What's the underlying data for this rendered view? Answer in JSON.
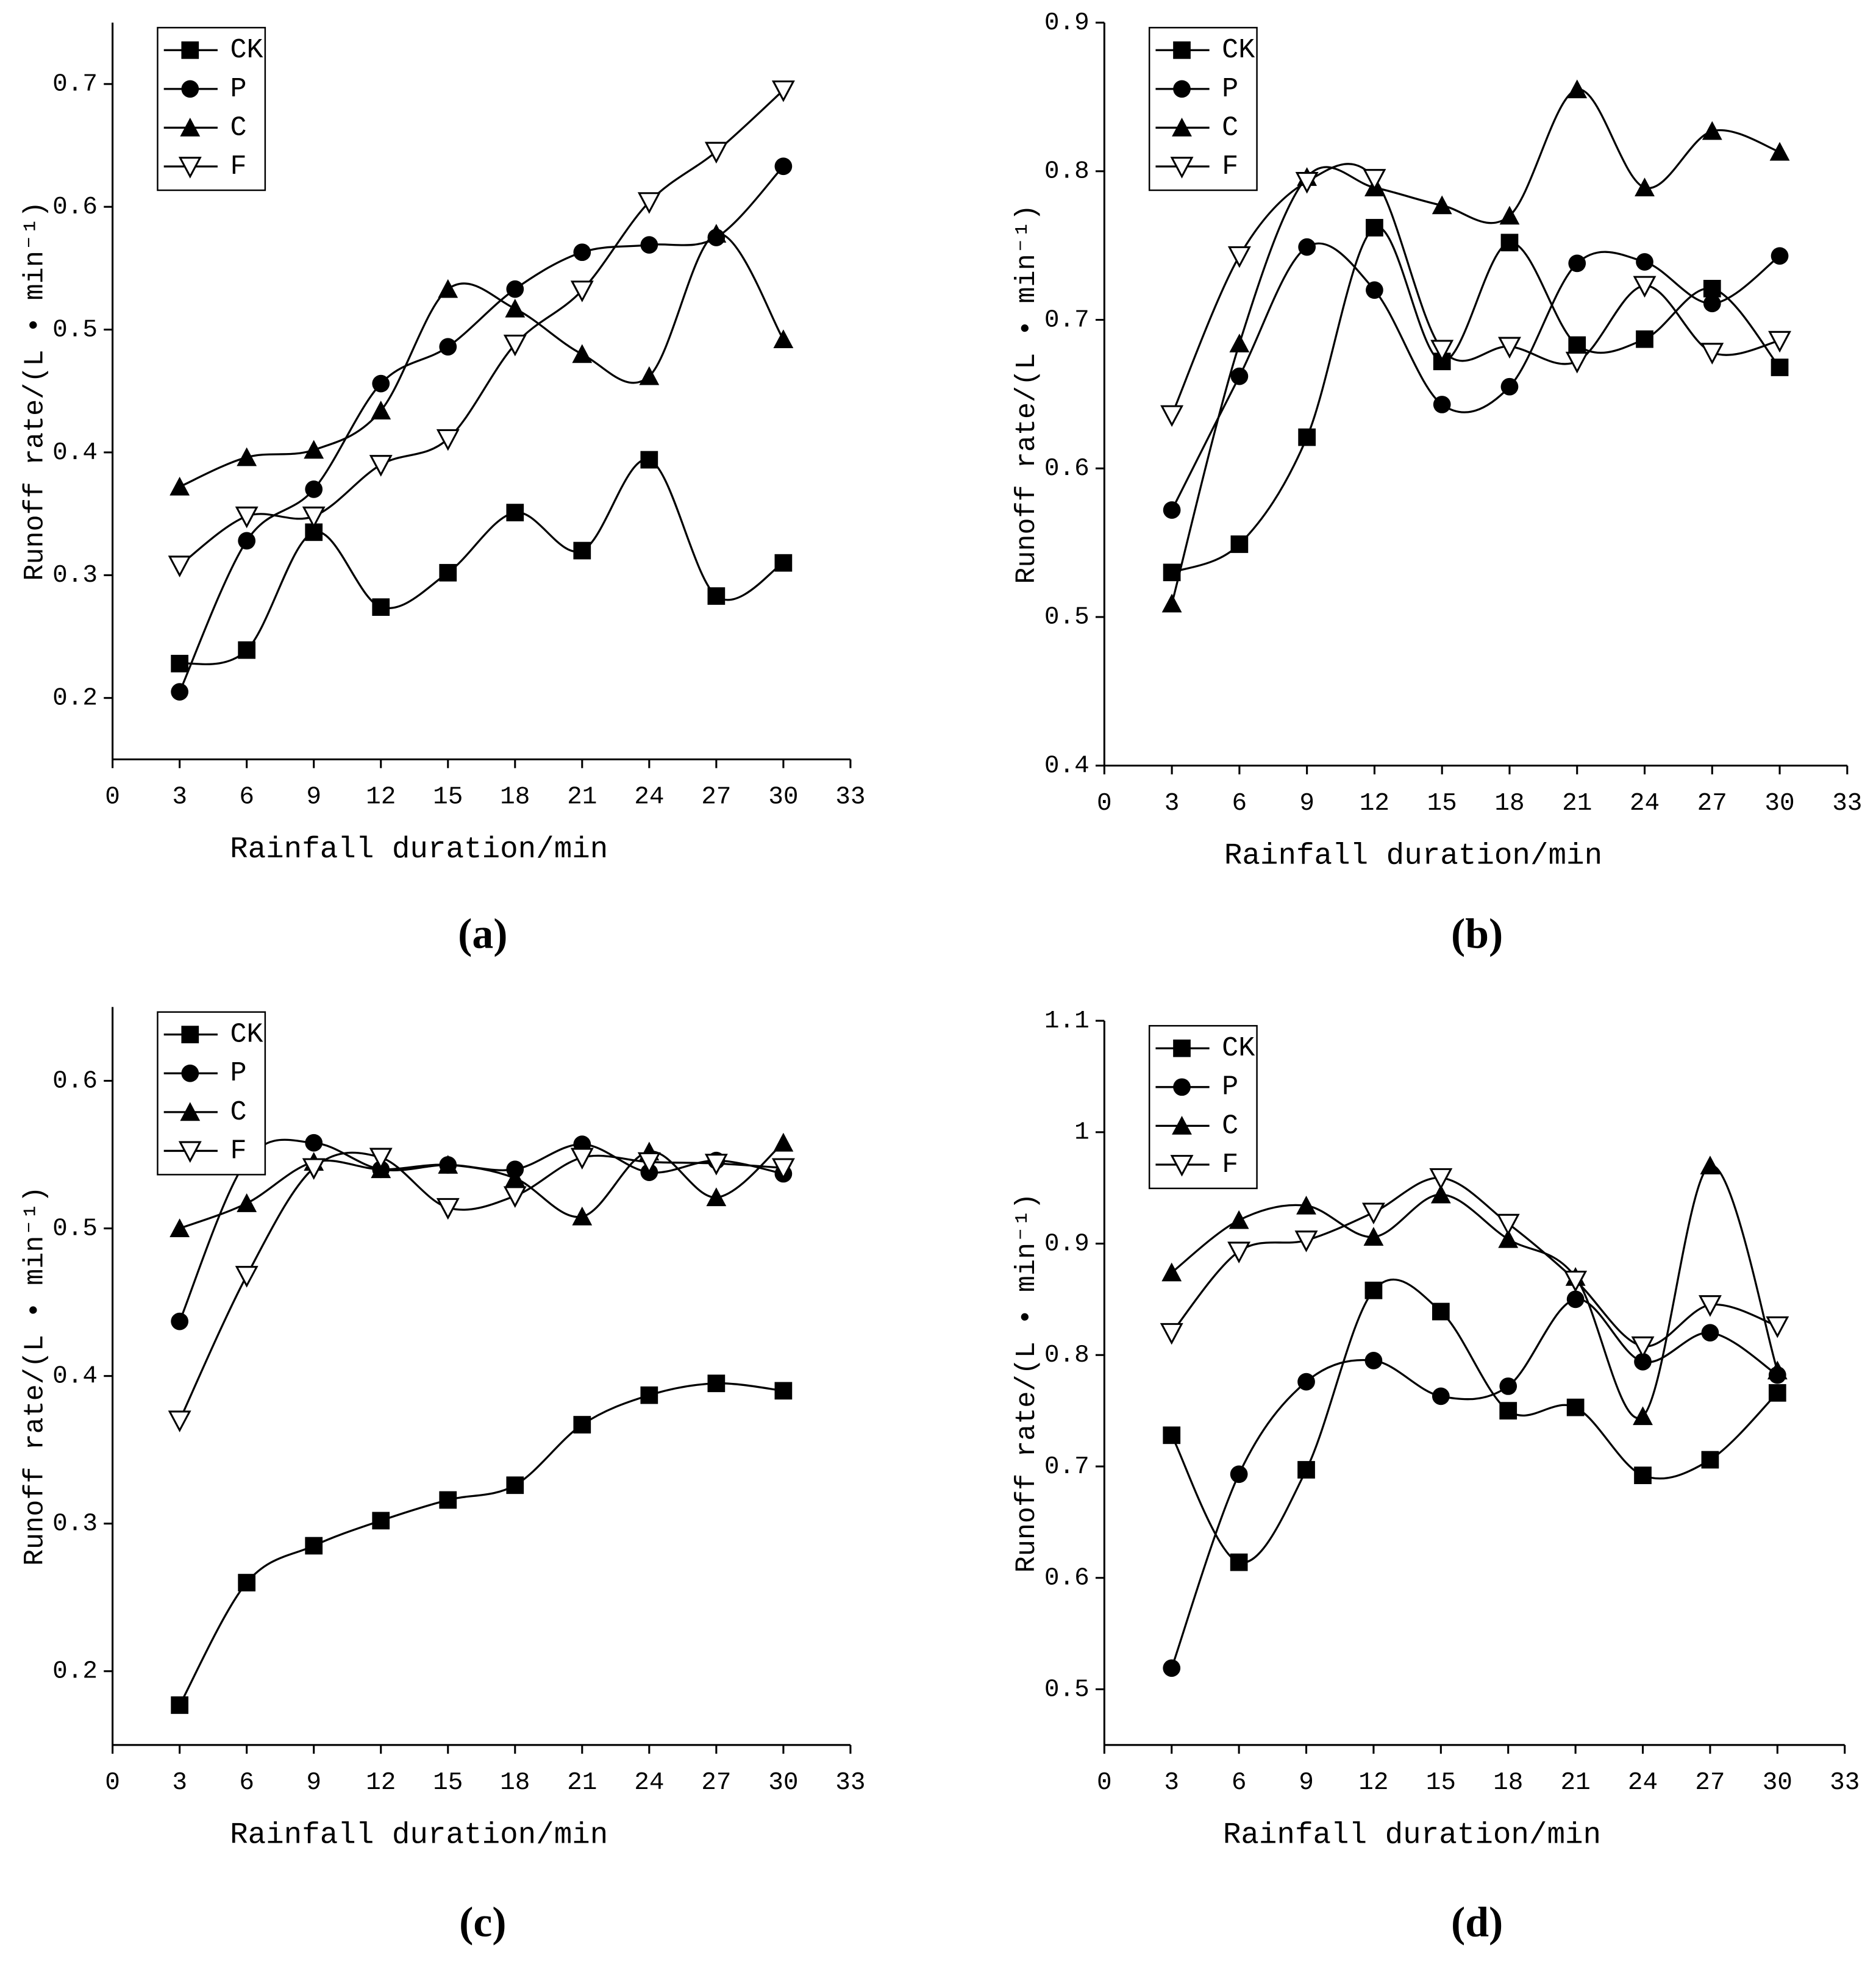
{
  "chart_data": [
    {
      "type": "line",
      "panel_label": "(a)",
      "xlabel": "Rainfall duration/min",
      "ylabel": "Runoff rate/(L • min⁻¹)",
      "x": [
        3,
        6,
        9,
        12,
        15,
        18,
        21,
        24,
        27,
        30
      ],
      "xlim": [
        0,
        33
      ],
      "xticks": [
        0,
        3,
        6,
        9,
        12,
        15,
        18,
        21,
        24,
        27,
        30,
        33
      ],
      "ylim": [
        0.15,
        0.75
      ],
      "yticks": [
        0.2,
        0.3,
        0.4,
        0.5,
        0.6,
        0.7
      ],
      "series": [
        {
          "name": "CK",
          "color": "#000000",
          "marker": "square",
          "values": [
            0.228,
            0.239,
            0.335,
            0.274,
            0.302,
            0.351,
            0.32,
            0.394,
            0.283,
            0.31
          ]
        },
        {
          "name": "P",
          "color": "#000000",
          "marker": "circle",
          "values": [
            0.205,
            0.328,
            0.37,
            0.456,
            0.486,
            0.533,
            0.563,
            0.569,
            0.575,
            0.633
          ]
        },
        {
          "name": "C",
          "color": "#000000",
          "marker": "triangle",
          "values": [
            0.372,
            0.396,
            0.402,
            0.434,
            0.533,
            0.517,
            0.48,
            0.462,
            0.578,
            0.492
          ]
        },
        {
          "name": "F",
          "color": "#000000",
          "marker": "open-down-triangle",
          "values": [
            0.308,
            0.348,
            0.348,
            0.39,
            0.411,
            0.488,
            0.532,
            0.604,
            0.645,
            0.695
          ]
        }
      ]
    },
    {
      "type": "line",
      "panel_label": "(b)",
      "xlabel": "Rainfall duration/min",
      "ylabel": "Runoff rate/(L • min⁻¹)",
      "x": [
        3,
        6,
        9,
        12,
        15,
        18,
        21,
        24,
        27,
        30
      ],
      "xlim": [
        0,
        33
      ],
      "xticks": [
        0,
        3,
        6,
        9,
        12,
        15,
        18,
        21,
        24,
        27,
        30,
        33
      ],
      "ylim": [
        0.4,
        0.9
      ],
      "yticks": [
        0.4,
        0.5,
        0.6,
        0.7,
        0.8,
        0.9
      ],
      "series": [
        {
          "name": "CK",
          "color": "#000000",
          "marker": "square",
          "values": [
            0.53,
            0.549,
            0.621,
            0.762,
            0.672,
            0.752,
            0.683,
            0.687,
            0.721,
            0.668
          ]
        },
        {
          "name": "P",
          "color": "#000000",
          "marker": "circle",
          "values": [
            0.572,
            0.662,
            0.749,
            0.72,
            0.643,
            0.655,
            0.738,
            0.739,
            0.711,
            0.743
          ]
        },
        {
          "name": "C",
          "color": "#000000",
          "marker": "triangle",
          "values": [
            0.509,
            0.684,
            0.796,
            0.789,
            0.777,
            0.77,
            0.855,
            0.789,
            0.827,
            0.813
          ]
        },
        {
          "name": "F",
          "color": "#000000",
          "marker": "open-down-triangle",
          "values": [
            0.636,
            0.743,
            0.793,
            0.795,
            0.68,
            0.682,
            0.672,
            0.723,
            0.678,
            0.686
          ]
        }
      ]
    },
    {
      "type": "line",
      "panel_label": "(c)",
      "xlabel": "Rainfall duration/min",
      "ylabel": "Runoff rate/(L • min⁻¹)",
      "x": [
        3,
        6,
        9,
        12,
        15,
        18,
        21,
        24,
        27,
        30
      ],
      "xlim": [
        0,
        33
      ],
      "xticks": [
        0,
        3,
        6,
        9,
        12,
        15,
        18,
        21,
        24,
        27,
        30,
        33
      ],
      "ylim": [
        0.15,
        0.65
      ],
      "yticks": [
        0.2,
        0.3,
        0.4,
        0.5,
        0.6
      ],
      "series": [
        {
          "name": "CK",
          "color": "#000000",
          "marker": "square",
          "values": [
            0.177,
            0.26,
            0.285,
            0.302,
            0.316,
            0.326,
            0.367,
            0.387,
            0.395,
            0.39
          ]
        },
        {
          "name": "P",
          "color": "#000000",
          "marker": "circle",
          "values": [
            0.437,
            0.546,
            0.558,
            0.54,
            0.543,
            0.54,
            0.557,
            0.538,
            0.546,
            0.537
          ]
        },
        {
          "name": "C",
          "color": "#000000",
          "marker": "triangle",
          "values": [
            0.5,
            0.517,
            0.545,
            0.54,
            0.543,
            0.534,
            0.508,
            0.552,
            0.521,
            0.558
          ]
        },
        {
          "name": "F",
          "color": "#000000",
          "marker": "open-down-triangle",
          "values": [
            0.37,
            0.468,
            0.541,
            0.548,
            0.514,
            0.522,
            0.548,
            0.545,
            0.544,
            0.541
          ]
        }
      ]
    },
    {
      "type": "line",
      "panel_label": "(d)",
      "xlabel": "Rainfall duration/min",
      "ylabel": "Runoff rate/(L • min⁻¹)",
      "x": [
        3,
        6,
        9,
        12,
        15,
        18,
        21,
        24,
        27,
        30
      ],
      "xlim": [
        0,
        33
      ],
      "xticks": [
        0,
        3,
        6,
        9,
        12,
        15,
        18,
        21,
        24,
        27,
        30,
        33
      ],
      "ylim": [
        0.45,
        1.1
      ],
      "yticks": [
        0.5,
        0.6,
        0.7,
        0.8,
        0.9,
        1.0,
        1.1
      ],
      "series": [
        {
          "name": "CK",
          "color": "#000000",
          "marker": "square",
          "values": [
            0.728,
            0.614,
            0.697,
            0.858,
            0.839,
            0.75,
            0.753,
            0.692,
            0.706,
            0.766
          ]
        },
        {
          "name": "P",
          "color": "#000000",
          "marker": "circle",
          "values": [
            0.519,
            0.693,
            0.776,
            0.795,
            0.763,
            0.772,
            0.85,
            0.794,
            0.82,
            0.782
          ]
        },
        {
          "name": "C",
          "color": "#000000",
          "marker": "triangle",
          "values": [
            0.874,
            0.921,
            0.934,
            0.906,
            0.944,
            0.904,
            0.87,
            0.745,
            0.97,
            0.786
          ]
        },
        {
          "name": "F",
          "color": "#000000",
          "marker": "open-down-triangle",
          "values": [
            0.82,
            0.893,
            0.903,
            0.928,
            0.959,
            0.918,
            0.867,
            0.808,
            0.845,
            0.826
          ]
        }
      ]
    }
  ]
}
